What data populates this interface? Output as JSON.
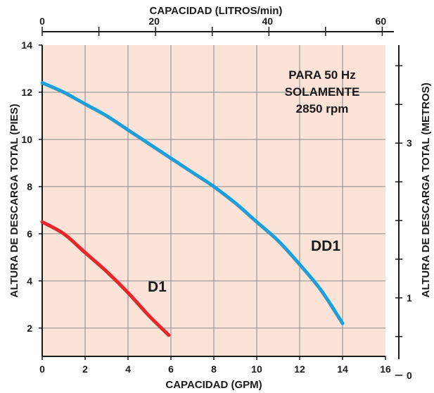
{
  "chart_data": {
    "type": "line",
    "xlabel_bottom": "CAPACIDAD (GPM)",
    "xlabel_top": "CAPACIDAD (LITROS/min)",
    "ylabel_left": "ALTURA DE DESCARGA TOTAL (PIES)",
    "ylabel_right": "ALTURA DE DESCARGA TOTAL (METROS)",
    "xlim": [
      0,
      16
    ],
    "ylim": [
      0.8,
      14
    ],
    "grid": true,
    "x_ticks": [
      "0",
      "2",
      "4",
      "6",
      "8",
      "10",
      "12",
      "14",
      "16"
    ],
    "y_ticks": [
      "2",
      "4",
      "6",
      "8",
      "10",
      "12",
      "14"
    ],
    "top_ticks": [
      "0",
      "20",
      "40",
      "60"
    ],
    "right_ticks": [
      "0",
      "1",
      "3"
    ],
    "annotation": [
      "PARA 50 Hz",
      "SOLAMENTE",
      "2850 rpm"
    ],
    "series": [
      {
        "name": "DD1",
        "color": "#1e9fd9",
        "x": [
          0,
          1,
          2,
          3,
          4,
          5,
          6,
          7,
          8,
          9,
          10,
          11,
          12,
          13,
          14
        ],
        "y": [
          12.4,
          12.0,
          11.5,
          11.0,
          10.4,
          9.8,
          9.2,
          8.6,
          8.0,
          7.3,
          6.5,
          5.7,
          4.7,
          3.6,
          2.2
        ]
      },
      {
        "name": "D1",
        "color": "#e8262b",
        "x": [
          0,
          1,
          2,
          3,
          4,
          5,
          5.9
        ],
        "y": [
          6.5,
          6.0,
          5.2,
          4.4,
          3.5,
          2.5,
          1.7
        ]
      }
    ],
    "background_color": "#fbe3d7"
  }
}
